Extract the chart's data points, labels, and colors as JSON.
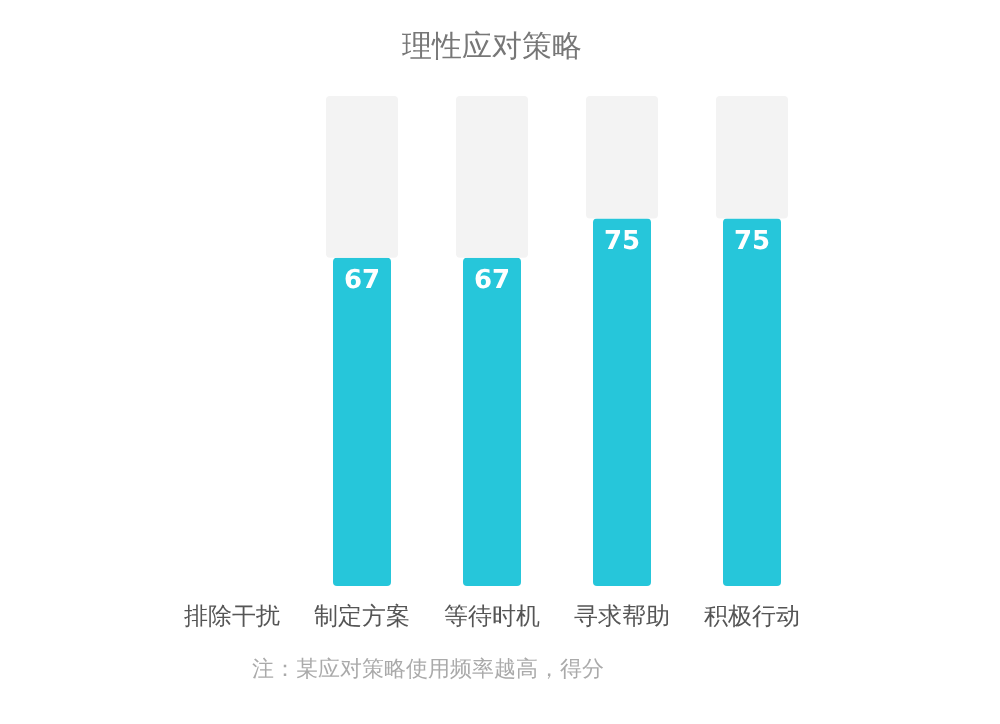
{
  "chart_data": {
    "type": "bar",
    "title": "理性应对策略",
    "stacked": true,
    "categories": [
      "排除干扰",
      "制定方案",
      "等待时机",
      "寻求帮助",
      "积极行动"
    ],
    "series": [
      {
        "color": "#26c6da",
        "values": [
          null,
          67,
          67,
          75,
          75
        ],
        "value_labels": [
          null,
          "67",
          "67",
          "75",
          "75"
        ]
      },
      {
        "color": "#f3f3f3",
        "values": [
          null,
          33,
          33,
          25,
          25
        ]
      }
    ],
    "ylim": [
      0,
      100
    ],
    "annotations": [
      "注：某应对策略使用频率越高，得分"
    ]
  }
}
